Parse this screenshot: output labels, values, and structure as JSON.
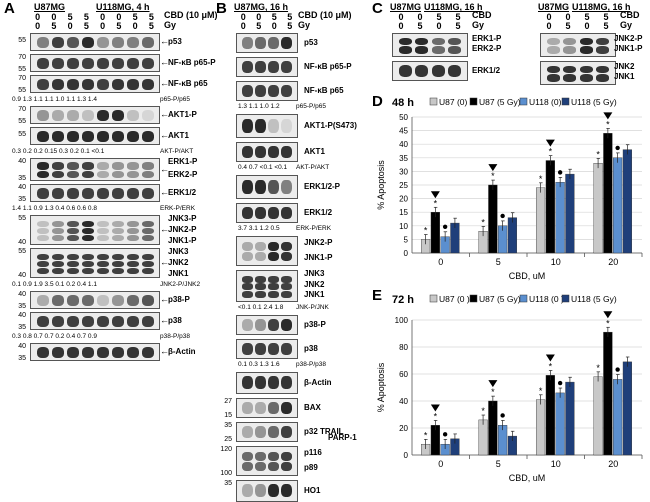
{
  "panels": {
    "A": "A",
    "B": "B",
    "C": "C",
    "D": "D",
    "E": "E"
  },
  "panelA": {
    "cells": [
      "U87MG",
      "U118MG, 4 h"
    ],
    "cbd_label": "CBD (10 μM)",
    "gy_label": "Gy",
    "cbd": [
      "0",
      "0",
      "5",
      "5",
      "0",
      "0",
      "5",
      "5"
    ],
    "gy": [
      "0",
      "5",
      "0",
      "5",
      "0",
      "5",
      "0",
      "5"
    ],
    "blots": [
      {
        "id": "p53",
        "label": "p53",
        "mw": [
          "55"
        ]
      },
      {
        "id": "nfkb-p",
        "label": "NF-κB p65-P",
        "mw": [
          "70",
          "55"
        ]
      },
      {
        "id": "nfkb",
        "label": "NF-κB p65",
        "mw": [
          "70",
          "55"
        ]
      },
      {
        "id": "akt1p",
        "label": "AKT1-P",
        "mw": [
          "70",
          "55"
        ]
      },
      {
        "id": "akt1",
        "label": "AKT1",
        "mw": [
          "55"
        ]
      },
      {
        "id": "erkp",
        "label": "ERK1-P\nERK2-P",
        "mw": [
          "40",
          "35"
        ]
      },
      {
        "id": "erk",
        "label": "ERK1/2",
        "mw": [
          "40",
          "35"
        ]
      },
      {
        "id": "jnkp",
        "label": "JNK3-P\nJNK2-P\nJNK1-P",
        "mw": [
          "55",
          "40"
        ]
      },
      {
        "id": "jnk",
        "label": "JNK3\nJNK2\nJNK1",
        "mw": [
          "55",
          "40"
        ]
      },
      {
        "id": "p38p",
        "label": "p38-P",
        "mw": [
          "40",
          "35"
        ]
      },
      {
        "id": "p38",
        "label": "p38",
        "mw": [
          "40",
          "35"
        ]
      },
      {
        "id": "actin",
        "label": "β-Actin",
        "mw": [
          "40",
          "35"
        ]
      }
    ],
    "ratios": [
      {
        "after": "nfkb",
        "values": "0.9  1.3  1.1  1.1  1.0  1.1  1.3  1.4",
        "name": "p65-P/p65"
      },
      {
        "after": "akt1",
        "values": "0.3  0.2  0.2  0.15  0.3  0.2  0.1  <0.1",
        "name": "AKT-P/AKT"
      },
      {
        "after": "erk",
        "values": "1.4  1.1  0.9  1.3  0.4  0.6  0.6  0.8",
        "name": "ERK-P/ERK"
      },
      {
        "after": "jnk",
        "values": "0.1  0.9  1.9  3.5  0.1  0.2  0.4  1.1",
        "name": "JNK2-P/JNK2"
      },
      {
        "after": "p38",
        "values": "0.3  0.8  0.7  0.7  0.2  0.4  0.7  0.9",
        "name": "p38-P/p38"
      }
    ]
  },
  "panelB": {
    "cells": "U87MG, 16 h",
    "cbd_label": "CBD (10 μM)",
    "gy_label": "Gy",
    "cbd": [
      "0",
      "0",
      "5",
      "5"
    ],
    "gy": [
      "0",
      "5",
      "0",
      "5"
    ],
    "blots": [
      {
        "id": "p53",
        "label": "p53"
      },
      {
        "id": "nfkbp",
        "label": "NF-κB p65-P"
      },
      {
        "id": "nfkb",
        "label": "NF-κB p65"
      },
      {
        "id": "aktp",
        "label": "AKT1-P(S473)"
      },
      {
        "id": "akt",
        "label": "AKT1"
      },
      {
        "id": "erkp",
        "label": "ERK1/2-P"
      },
      {
        "id": "erk",
        "label": "ERK1/2"
      },
      {
        "id": "jnkp",
        "label": "JNK2-P\nJNK1-P"
      },
      {
        "id": "jnk",
        "label": "JNK3\nJNK2\nJNK1"
      },
      {
        "id": "p38p",
        "label": "p38-P"
      },
      {
        "id": "p38",
        "label": "p38"
      },
      {
        "id": "actin",
        "label": "β-Actin"
      },
      {
        "id": "bax",
        "label": "BAX",
        "mw": [
          "27",
          "15"
        ]
      },
      {
        "id": "trail",
        "label": "p32 TRAIL",
        "mw": [
          "35",
          "25"
        ]
      },
      {
        "id": "parp",
        "label": "p116\np89",
        "mw": [
          "120",
          "100"
        ]
      },
      {
        "id": "ho1",
        "label": "HO1",
        "mw": [
          "35"
        ]
      }
    ],
    "parp": "PARP-1",
    "ratios": [
      {
        "values": "1.3  1.1  1.0  1.2",
        "name": "p65-P/p65"
      },
      {
        "values": "0.4  0.7  <0.1  <0.1",
        "name": "AKT-P/AKT"
      },
      {
        "values": "3.7  3.1  1.2  0.5",
        "name": "ERK-P/ERK"
      },
      {
        "values": "<0.1  0.1  2.4  1.8",
        "name": "JNK-P/JNK"
      },
      {
        "values": "0.1  0.3  1.3  1.6",
        "name": "p38-P/p38"
      }
    ]
  },
  "panelC": {
    "cells": [
      "U87MG",
      "U118MG, 16 h"
    ],
    "cbd_label": "CBD",
    "gy_label": "Gy",
    "cbd": [
      "0",
      "0",
      "5",
      "5"
    ],
    "gy": [
      "0",
      "5",
      "0",
      "5"
    ],
    "left": {
      "phospho": "ERK1-P\nERK2-P",
      "total": "ERK1/2"
    },
    "right": {
      "phospho": "JNK2-P\nJNK1-P",
      "total": "JNK2\nJNK1"
    }
  },
  "chart_data": [
    {
      "type": "bar",
      "title": "48 h",
      "panel": "D",
      "categories": [
        "0",
        "5",
        "10",
        "20"
      ],
      "xlabel": "CBD, uM",
      "ylabel": "% Apoptosis",
      "ylim": [
        0,
        50
      ],
      "yticks": [
        "0",
        "5",
        "10",
        "15",
        "20",
        "25",
        "30",
        "35",
        "40",
        "45",
        "50"
      ],
      "series": [
        {
          "name": "U87 (0)",
          "color": "#c8c8c8",
          "values": [
            5,
            8,
            24,
            33
          ]
        },
        {
          "name": "U87 (5 Gy)",
          "color": "#000000",
          "values": [
            15,
            25,
            34,
            44
          ]
        },
        {
          "name": "U118 (0)",
          "color": "#5b8fcf",
          "values": [
            6,
            10,
            26,
            35
          ]
        },
        {
          "name": "U118 (5 Gy)",
          "color": "#1f3f7a",
          "values": [
            11,
            13,
            29,
            38
          ]
        }
      ]
    },
    {
      "type": "bar",
      "title": "72 h",
      "panel": "E",
      "categories": [
        "0",
        "5",
        "10",
        "20"
      ],
      "xlabel": "CBD, uM",
      "ylabel": "% Apoptosis",
      "ylim": [
        0,
        100
      ],
      "yticks": [
        "0",
        "20",
        "40",
        "60",
        "80",
        "100"
      ],
      "series": [
        {
          "name": "U87 (0 )",
          "color": "#c8c8c8",
          "values": [
            8,
            26,
            41,
            58
          ]
        },
        {
          "name": "U87 (5 Gy)",
          "color": "#000000",
          "values": [
            22,
            40,
            59,
            91
          ]
        },
        {
          "name": "U118 (0 )",
          "color": "#5b8fcf",
          "values": [
            8,
            22,
            46,
            56
          ]
        },
        {
          "name": "U118 (5 Gy)",
          "color": "#1f3f7a",
          "values": [
            12,
            14,
            54,
            69
          ]
        }
      ]
    }
  ]
}
